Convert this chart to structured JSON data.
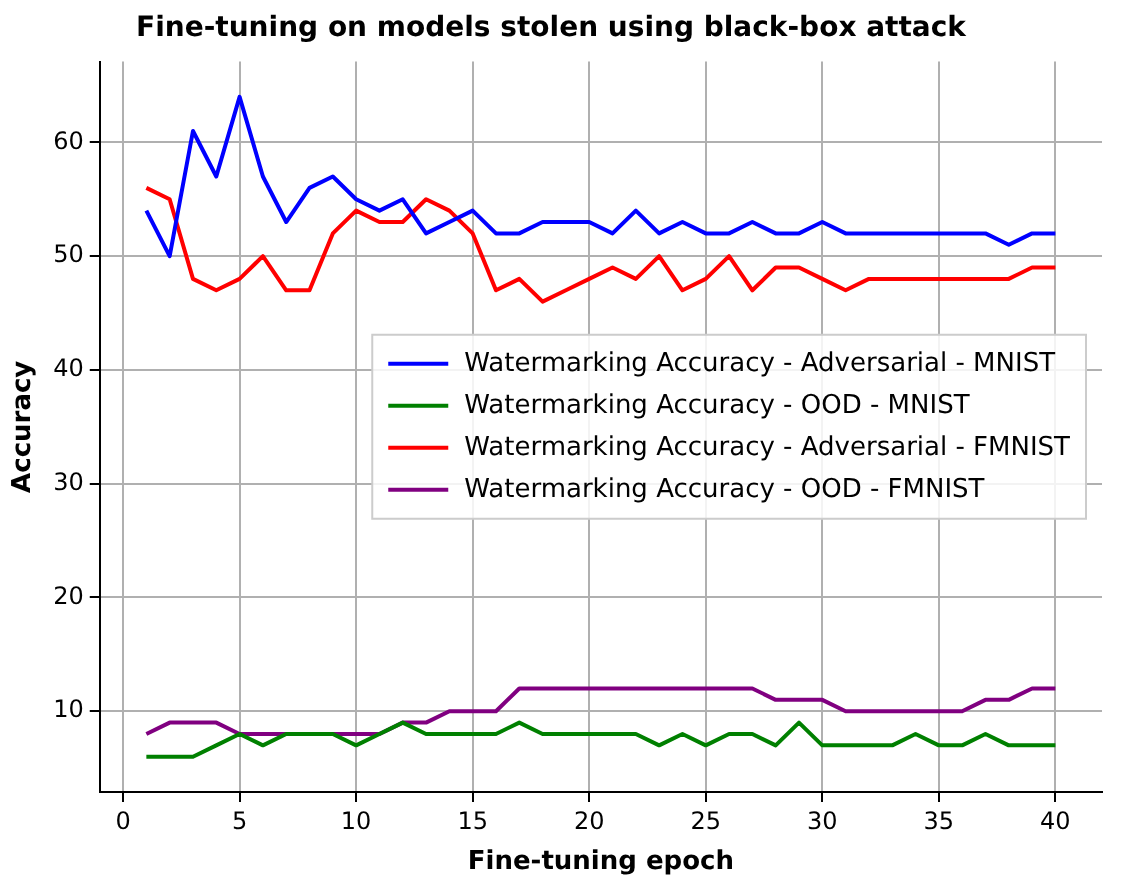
{
  "chart_data": {
    "type": "line",
    "title": "Fine-tuning on models stolen using black-box attack",
    "xlabel": "Fine-tuning epoch",
    "ylabel": "Accuracy",
    "x": [
      1,
      2,
      3,
      4,
      5,
      6,
      7,
      8,
      9,
      10,
      11,
      12,
      13,
      14,
      15,
      16,
      17,
      18,
      19,
      20,
      21,
      22,
      23,
      24,
      25,
      26,
      27,
      28,
      29,
      30,
      31,
      32,
      33,
      34,
      35,
      36,
      37,
      38,
      39,
      40
    ],
    "series": [
      {
        "name": "Watermarking Accuracy - Adversarial - MNIST",
        "color": "#0000ff",
        "values": [
          54,
          50,
          61,
          57,
          64,
          57,
          53,
          56,
          57,
          55,
          54,
          55,
          52,
          53,
          54,
          52,
          52,
          53,
          53,
          53,
          52,
          54,
          52,
          53,
          52,
          52,
          53,
          52,
          52,
          53,
          52,
          52,
          52,
          52,
          52,
          52,
          52,
          51,
          52,
          52
        ]
      },
      {
        "name": "Watermarking Accuracy - OOD - MNIST",
        "color": "#008000",
        "values": [
          6,
          6,
          6,
          7,
          8,
          7,
          8,
          8,
          8,
          7,
          8,
          9,
          8,
          8,
          8,
          8,
          9,
          8,
          8,
          8,
          8,
          8,
          7,
          8,
          7,
          8,
          8,
          7,
          9,
          7,
          7,
          7,
          7,
          8,
          7,
          7,
          8,
          7,
          7,
          7
        ]
      },
      {
        "name": "Watermarking Accuracy - Adversarial - FMNIST",
        "color": "#ff0000",
        "values": [
          56,
          55,
          48,
          47,
          48,
          50,
          47,
          47,
          52,
          54,
          53,
          53,
          55,
          54,
          52,
          47,
          48,
          46,
          47,
          48,
          49,
          48,
          50,
          47,
          48,
          50,
          47,
          49,
          49,
          48,
          47,
          48,
          48,
          48,
          48,
          48,
          48,
          48,
          49,
          49
        ]
      },
      {
        "name": "Watermarking Accuracy - OOD - FMNIST",
        "color": "#800080",
        "values": [
          8,
          9,
          9,
          9,
          8,
          8,
          8,
          8,
          8,
          8,
          8,
          9,
          9,
          10,
          10,
          10,
          12,
          12,
          12,
          12,
          12,
          12,
          12,
          12,
          12,
          12,
          12,
          11,
          11,
          11,
          10,
          10,
          10,
          10,
          10,
          10,
          11,
          11,
          12,
          12
        ]
      }
    ],
    "xlim": [
      -1,
      42
    ],
    "xticks": [
      0,
      5,
      10,
      15,
      20,
      25,
      30,
      35,
      40
    ],
    "ylim": [
      2.9,
      67.1
    ],
    "yticks": [
      10,
      20,
      30,
      40,
      50,
      60
    ],
    "grid": true,
    "legend": "center right",
    "marker": "none",
    "line_style": "solid"
  }
}
